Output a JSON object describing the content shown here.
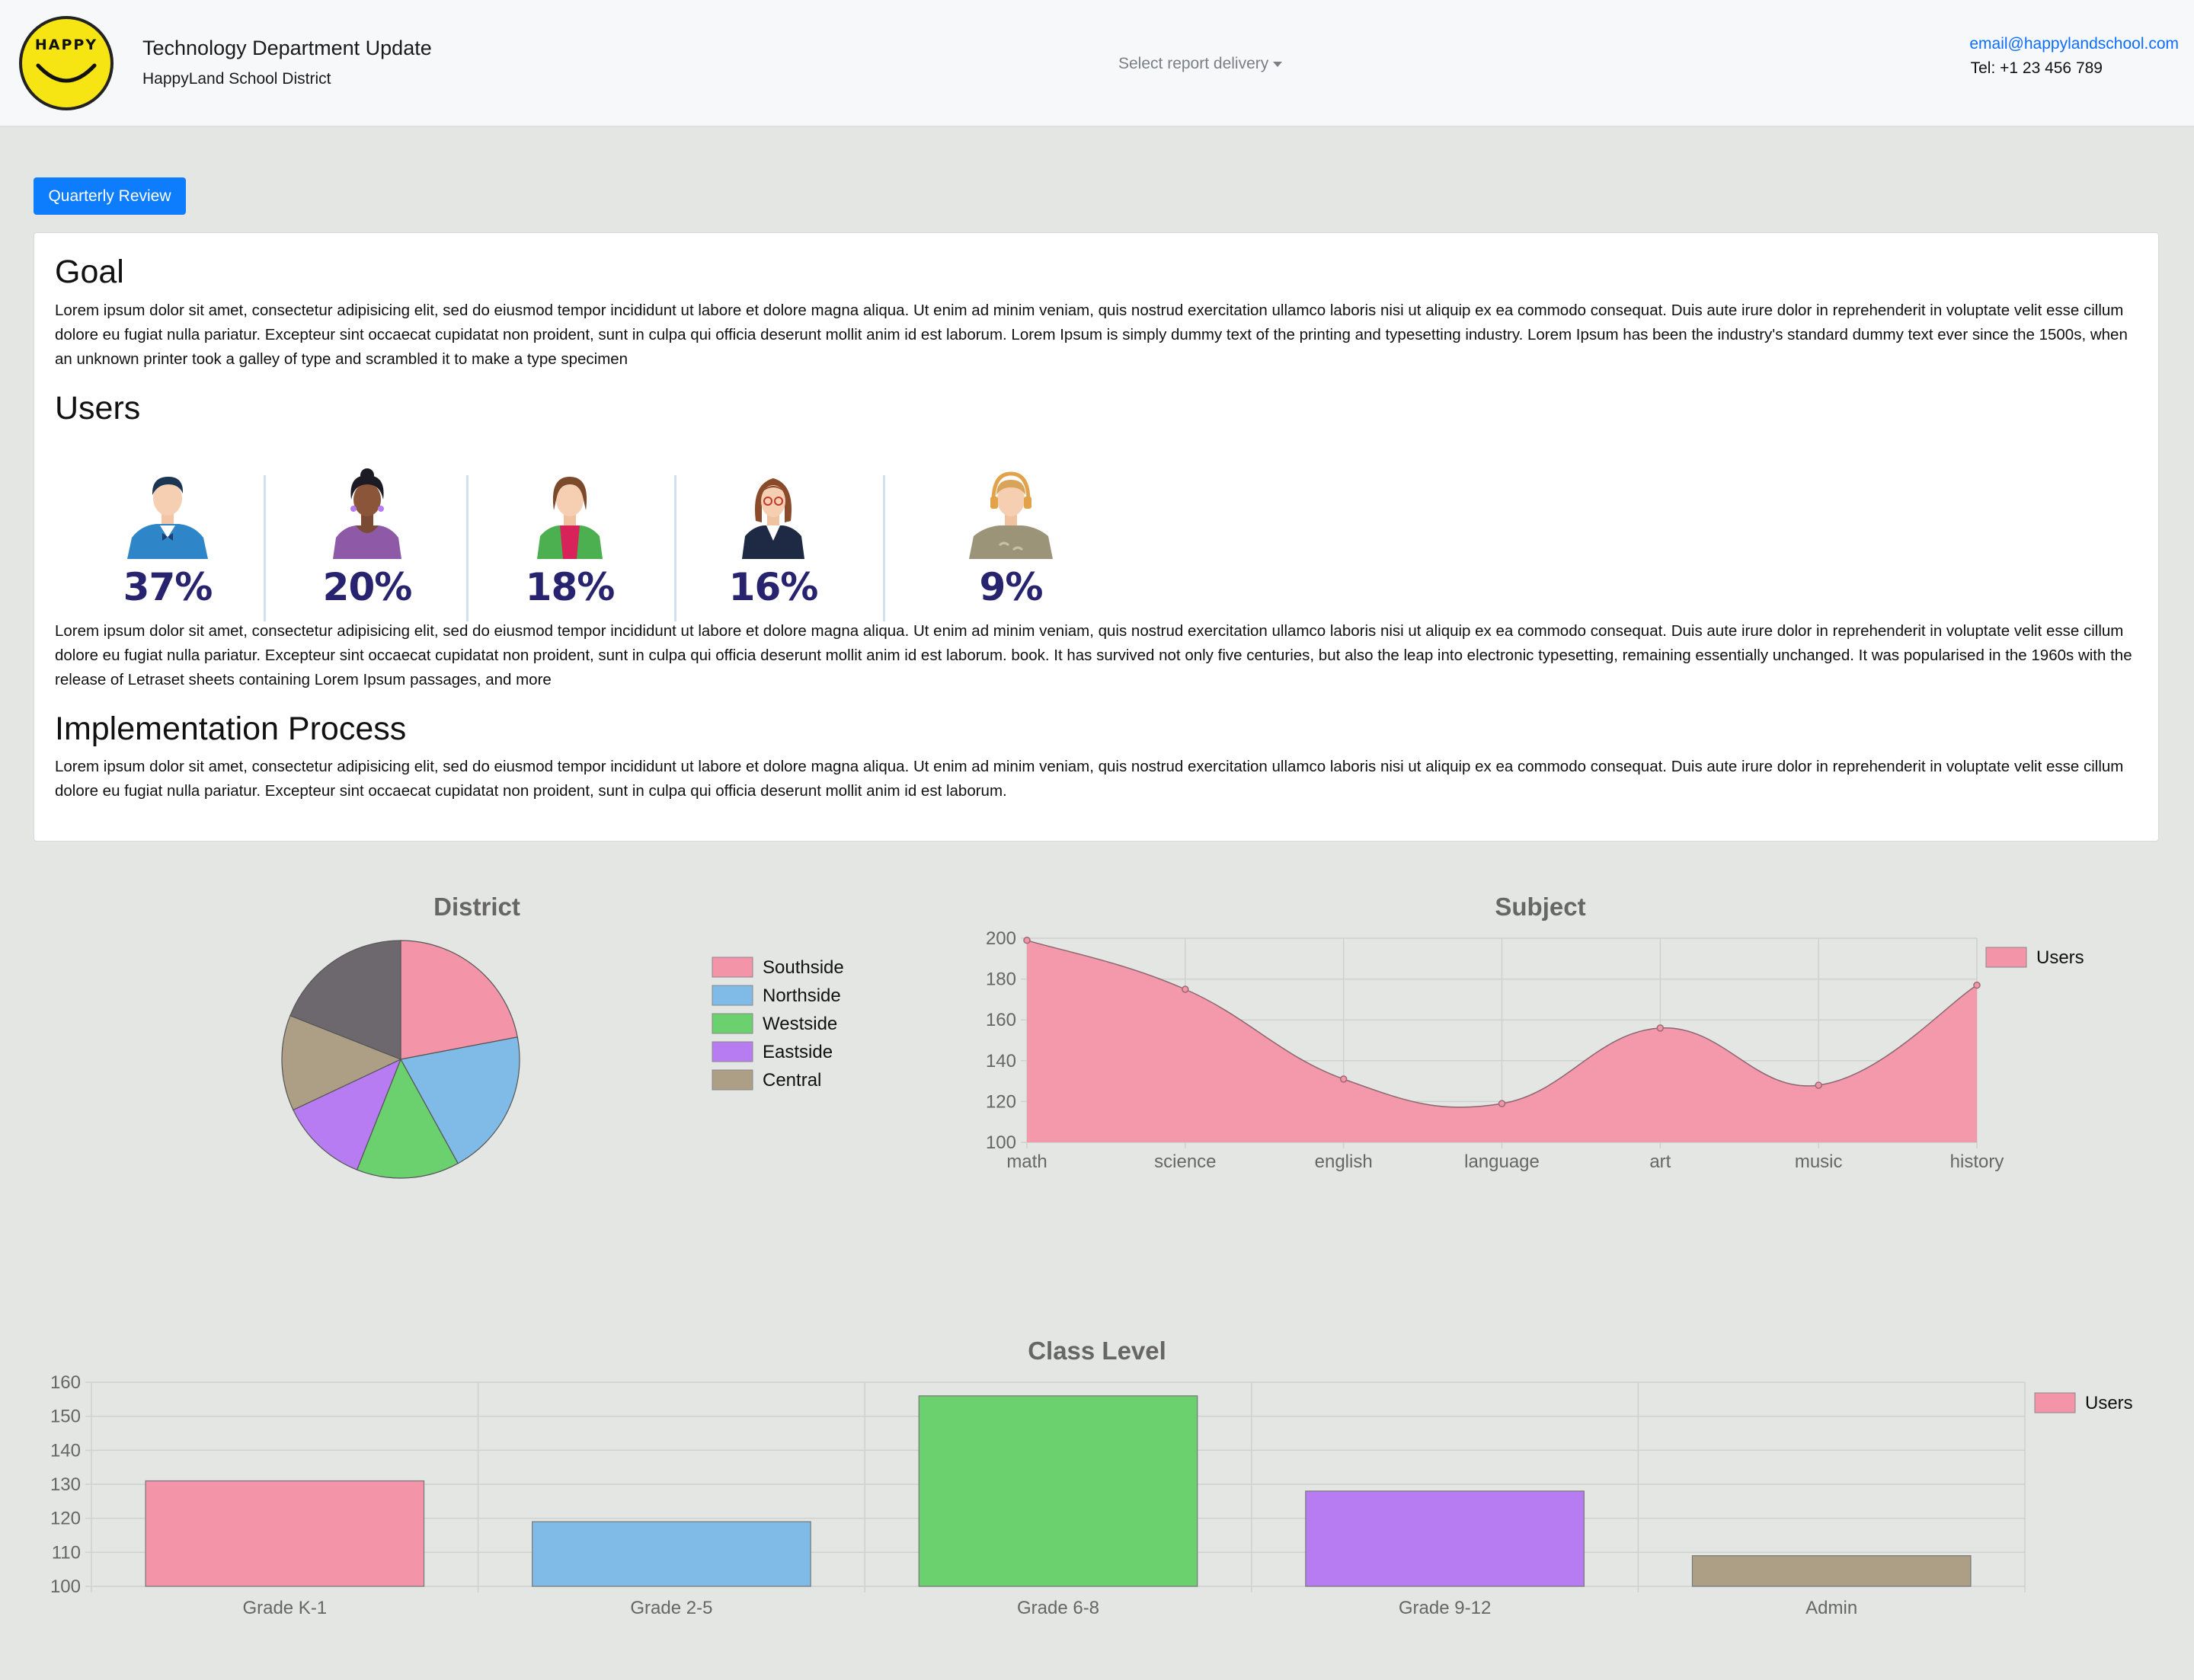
{
  "header": {
    "logo_text": "HAPPY",
    "title": "Technology Department Update",
    "subtitle": "HappyLand School District",
    "delivery_label": "Select report delivery",
    "email": "email@happylandschool.com",
    "tel": "Tel: +1 23 456 789"
  },
  "button": {
    "label": "Quarterly Review"
  },
  "sections": {
    "goal_title": "Goal",
    "goal_text": "Lorem ipsum dolor sit amet, consectetur adipisicing elit, sed do eiusmod tempor incididunt ut labore et dolore magna aliqua. Ut enim ad minim veniam, quis nostrud exercitation ullamco laboris nisi ut aliquip ex ea commodo consequat. Duis aute irure dolor in reprehenderit in voluptate velit esse cillum dolore eu fugiat nulla pariatur. Excepteur sint occaecat cupidatat non proident, sunt in culpa qui officia deserunt mollit anim id est laborum. Lorem Ipsum is simply dummy text of the printing and typesetting industry. Lorem Ipsum has been the industry's standard dummy text ever since the 1500s, when an unknown printer took a galley of type and scrambled it to make a type specimen",
    "users_title": "Users",
    "users": [
      {
        "pct": "37%",
        "icon": "businessman-icon"
      },
      {
        "pct": "20%",
        "icon": "woman-icon"
      },
      {
        "pct": "18%",
        "icon": "student-icon"
      },
      {
        "pct": "16%",
        "icon": "businesswoman-icon"
      },
      {
        "pct": "9%",
        "icon": "support-agent-icon"
      }
    ],
    "users_text": "Lorem ipsum dolor sit amet, consectetur adipisicing elit, sed do eiusmod tempor incididunt ut labore et dolore magna aliqua. Ut enim ad minim veniam, quis nostrud exercitation ullamco laboris nisi ut aliquip ex ea commodo consequat. Duis aute irure dolor in reprehenderit in voluptate velit esse cillum dolore eu fugiat nulla pariatur. Excepteur sint occaecat cupidatat non proident, sunt in culpa qui officia deserunt mollit anim id est laborum. book. It has survived not only five centuries, but also the leap into electronic typesetting, remaining essentially unchanged. It was popularised in the 1960s with the release of Letraset sheets containing Lorem Ipsum passages, and more",
    "impl_title": "Implementation Process",
    "impl_text": "Lorem ipsum dolor sit amet, consectetur adipisicing elit, sed do eiusmod tempor incididunt ut labore et dolore magna aliqua. Ut enim ad minim veniam, quis nostrud exercitation ullamco laboris nisi ut aliquip ex ea commodo consequat. Duis aute irure dolor in reprehenderit in voluptate velit esse cillum dolore eu fugiat nulla pariatur. Excepteur sint occaecat cupidatat non proident, sunt in culpa qui officia deserunt mollit anim id est laborum."
  },
  "colors": {
    "pink": "#f494a8",
    "blue": "#7fbbe6",
    "green": "#6bd16f",
    "purple": "#b77cf1",
    "tan": "#ad9e86",
    "gray": "#6c686d",
    "primary": "#0d7dfd"
  },
  "chart_data": [
    {
      "type": "pie",
      "title": "District",
      "categories": [
        "Southside",
        "Northside",
        "Westside",
        "Eastside",
        "Central",
        ""
      ],
      "values": [
        22,
        20,
        14,
        12,
        13,
        19
      ],
      "colors": [
        "#f494a8",
        "#7fbbe6",
        "#6bd16f",
        "#b77cf1",
        "#ad9e86",
        "#6c686d"
      ],
      "legend": "right"
    },
    {
      "type": "area",
      "title": "Subject",
      "categories": [
        "math",
        "science",
        "english",
        "language",
        "art",
        "music",
        "history"
      ],
      "series": [
        {
          "name": "Users",
          "values": [
            199,
            175,
            131,
            119,
            156,
            128,
            177
          ]
        }
      ],
      "ylim": [
        100,
        200
      ],
      "yticks": [
        100,
        120,
        140,
        160,
        180,
        200
      ],
      "grid": true,
      "legend": "top-right"
    },
    {
      "type": "bar",
      "title": "Class Level",
      "categories": [
        "Grade K-1",
        "Grade 2-5",
        "Grade 6-8",
        "Grade 9-12",
        "Admin"
      ],
      "series": [
        {
          "name": "Users",
          "values": [
            131,
            119,
            156,
            128,
            109
          ]
        }
      ],
      "colors": [
        "#f494a8",
        "#7fbbe6",
        "#6bd16f",
        "#b77cf1",
        "#ad9e86"
      ],
      "ylim": [
        100,
        160
      ],
      "yticks": [
        100,
        110,
        120,
        130,
        140,
        150,
        160
      ],
      "grid": true,
      "legend": "top-right"
    }
  ]
}
